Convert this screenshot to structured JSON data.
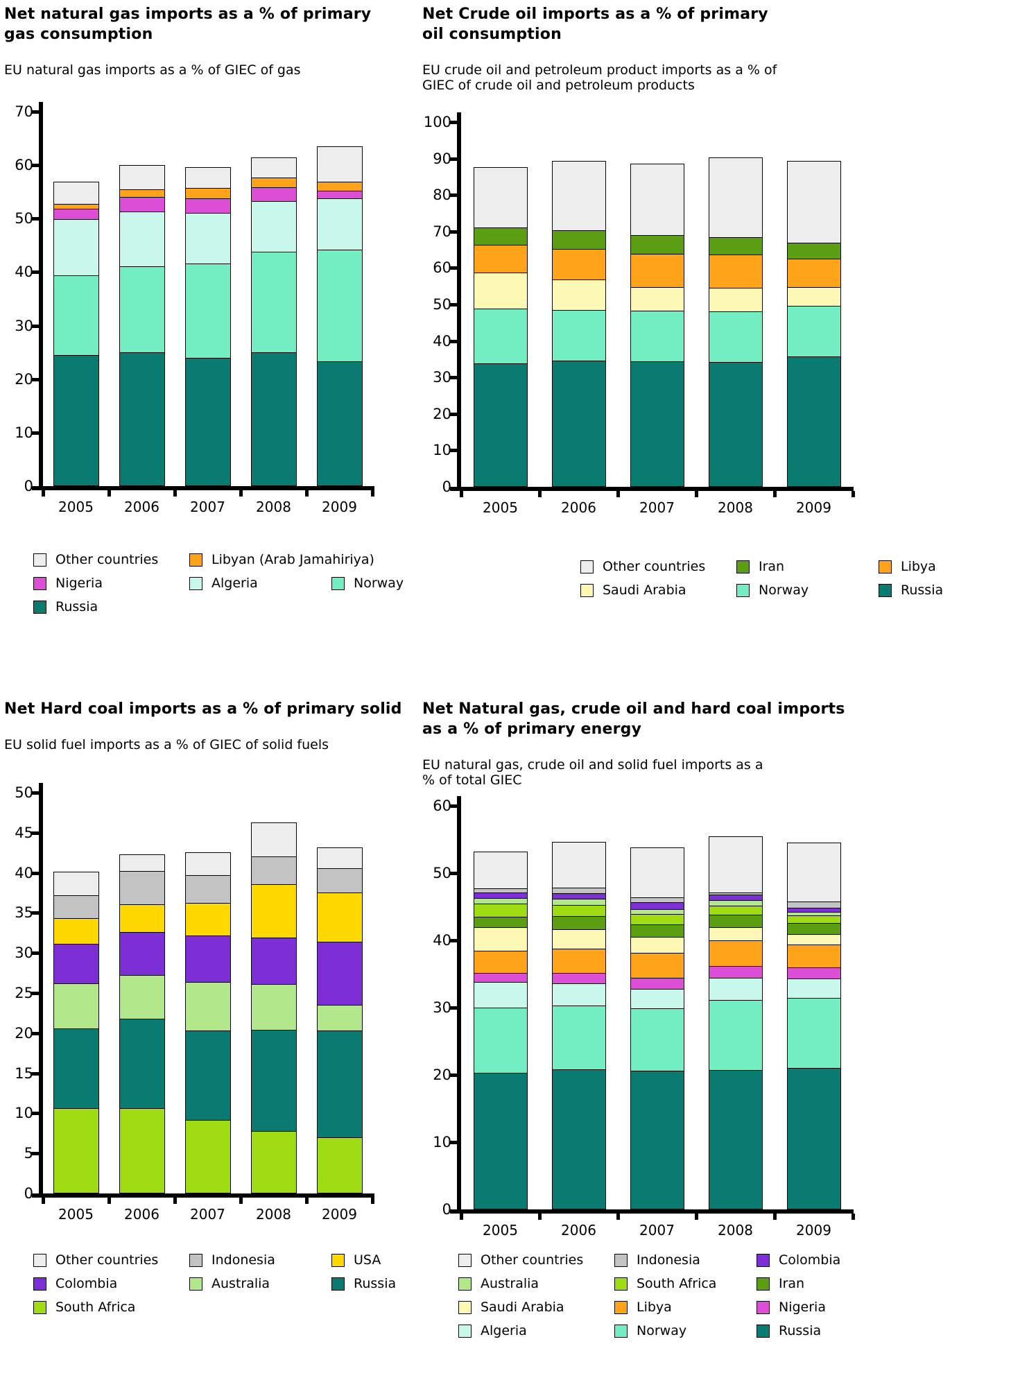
{
  "page": {
    "background": "#FFFFFF"
  },
  "chart_data": [
    {
      "type": "bar",
      "stacked": true,
      "title": "Net natural gas imports as a % of primary\ngas consumption",
      "subtitle": "EU natural gas imports as a % of GIEC of gas",
      "categories": [
        "2005",
        "2006",
        "2007",
        "2008",
        "2009"
      ],
      "xlabel": "",
      "ylabel": "",
      "ylim": [
        0,
        70
      ],
      "ytick_step": 10,
      "grid": false,
      "legend_position": "bottom",
      "series": [
        {
          "name": "Russia",
          "color": "#097B70",
          "values": [
            24.5,
            25.0,
            24.0,
            25.0,
            23.3
          ]
        },
        {
          "name": "Norway",
          "color": "#72EEC2",
          "values": [
            15.0,
            16.2,
            17.8,
            19.0,
            21.0
          ]
        },
        {
          "name": "Algeria",
          "color": "#C8F7EC",
          "values": [
            10.7,
            10.4,
            9.5,
            9.6,
            9.8
          ]
        },
        {
          "name": "Nigeria",
          "color": "#DC4ED6",
          "values": [
            2.1,
            2.9,
            2.9,
            2.7,
            1.5
          ]
        },
        {
          "name": "Libyan (Arab Jamahiriya)",
          "color": "#FFA31B",
          "values": [
            1.0,
            1.5,
            2.0,
            1.9,
            1.8
          ]
        },
        {
          "name": "Other countries",
          "color": "#EDEDED",
          "values": [
            4.3,
            4.7,
            4.1,
            3.9,
            6.8
          ]
        }
      ],
      "legend_rows": [
        [
          "Other countries",
          "Libyan (Arab Jamahiriya)"
        ],
        [
          "Nigeria",
          "Algeria",
          "Norway"
        ],
        [
          "Russia"
        ]
      ]
    },
    {
      "type": "bar",
      "stacked": true,
      "title": "Net Crude oil imports as a % of primary\noil consumption",
      "subtitle": "EU crude oil  and petroleum product imports as a % of\nGIEC of crude oil and petroleum products",
      "categories": [
        "2005",
        "2006",
        "2007",
        "2008",
        "2009"
      ],
      "xlabel": "",
      "ylabel": "",
      "ylim": [
        0,
        100
      ],
      "ytick_step": 10,
      "grid": false,
      "legend_position": "bottom",
      "series": [
        {
          "name": "Russia",
          "color": "#097B70",
          "values": [
            33.9,
            34.6,
            34.5,
            34.3,
            35.7
          ]
        },
        {
          "name": "Norway",
          "color": "#72EEC2",
          "values": [
            15.2,
            14.1,
            14.0,
            14.0,
            14.1
          ]
        },
        {
          "name": "Saudi Arabia",
          "color": "#FDF8B4",
          "values": [
            10.1,
            8.5,
            6.7,
            6.6,
            5.4
          ]
        },
        {
          "name": "Libya",
          "color": "#FFA31B",
          "values": [
            7.8,
            8.6,
            9.3,
            9.4,
            7.9
          ]
        },
        {
          "name": "Iran",
          "color": "#5B9E11",
          "values": [
            4.8,
            5.4,
            5.3,
            5.0,
            4.5
          ]
        },
        {
          "name": "Other countries",
          "color": "#EDEDED",
          "values": [
            16.8,
            19.2,
            19.7,
            22.0,
            22.7
          ]
        }
      ],
      "legend_rows": [
        [
          "Other countries",
          "Iran",
          "Libya"
        ],
        [
          "Saudi Arabia",
          "Norway",
          "Russia"
        ]
      ]
    },
    {
      "type": "bar",
      "stacked": true,
      "title": "Net Hard coal imports as a % of primary solid",
      "subtitle": "EU solid fuel imports as a % of GIEC of solid fuels",
      "categories": [
        "2005",
        "2006",
        "2007",
        "2008",
        "2009"
      ],
      "xlabel": "",
      "ylabel": "",
      "ylim": [
        0,
        50
      ],
      "ytick_step": 5,
      "grid": false,
      "legend_position": "bottom",
      "series": [
        {
          "name": "South Africa",
          "color": "#A0DC14",
          "values": [
            10.6,
            10.6,
            9.2,
            7.8,
            7.0
          ]
        },
        {
          "name": "Russia",
          "color": "#097B70",
          "values": [
            10.1,
            11.3,
            11.2,
            12.7,
            13.4
          ]
        },
        {
          "name": "Australia",
          "color": "#B2E78C",
          "values": [
            5.7,
            5.5,
            6.2,
            5.8,
            3.3
          ]
        },
        {
          "name": "Colombia",
          "color": "#7D2FD5",
          "values": [
            5.0,
            5.5,
            5.8,
            5.9,
            8.0
          ]
        },
        {
          "name": "USA",
          "color": "#FFD800",
          "values": [
            3.3,
            3.5,
            4.2,
            6.7,
            6.2
          ]
        },
        {
          "name": "Indonesia",
          "color": "#C3C3C3",
          "values": [
            2.9,
            4.3,
            3.5,
            3.6,
            3.1
          ]
        },
        {
          "name": "Other countries",
          "color": "#EDEDED",
          "values": [
            3.1,
            2.1,
            3.0,
            4.3,
            2.7
          ]
        }
      ],
      "legend_rows": [
        [
          "Other countries",
          "Indonesia",
          "USA"
        ],
        [
          "Colombia",
          "Australia",
          "Russia"
        ],
        [
          "South Africa"
        ]
      ]
    },
    {
      "type": "bar",
      "stacked": true,
      "title": "Net Natural gas, crude oil and hard coal imports\nas a % of primary energy",
      "subtitle": "EU natural gas, crude oil and  solid fuel imports as a\n% of total GIEC",
      "categories": [
        "2005",
        "2006",
        "2007",
        "2008",
        "2009"
      ],
      "xlabel": "",
      "ylabel": "",
      "ylim": [
        0,
        60
      ],
      "ytick_step": 10,
      "grid": false,
      "legend_position": "bottom",
      "series": [
        {
          "name": "Russia",
          "color": "#097B70",
          "values": [
            20.3,
            20.8,
            20.6,
            20.7,
            21.0
          ]
        },
        {
          "name": "Norway",
          "color": "#72EEC2",
          "values": [
            9.8,
            9.6,
            9.4,
            10.5,
            10.5
          ]
        },
        {
          "name": "Algeria",
          "color": "#C8F7EC",
          "values": [
            3.9,
            3.4,
            3.0,
            3.4,
            3.0
          ]
        },
        {
          "name": "Nigeria",
          "color": "#DC4ED6",
          "values": [
            1.5,
            1.7,
            1.7,
            1.9,
            1.8
          ]
        },
        {
          "name": "Libya",
          "color": "#FFA31B",
          "values": [
            3.4,
            3.7,
            3.9,
            3.9,
            3.5
          ]
        },
        {
          "name": "Saudi Arabia",
          "color": "#FDF8B4",
          "values": [
            3.6,
            3.0,
            2.4,
            2.1,
            1.7
          ]
        },
        {
          "name": "Iran",
          "color": "#5B9E11",
          "values": [
            1.6,
            2.0,
            2.0,
            1.9,
            1.7
          ]
        },
        {
          "name": "South Africa",
          "color": "#A0DC14",
          "values": [
            2.1,
            1.8,
            1.6,
            1.5,
            1.2
          ]
        },
        {
          "name": "Australia",
          "color": "#B2E78C",
          "values": [
            0.9,
            1.0,
            0.9,
            0.9,
            0.7
          ]
        },
        {
          "name": "Colombia",
          "color": "#7D2FD5",
          "values": [
            0.9,
            0.9,
            1.1,
            0.9,
            0.7
          ]
        },
        {
          "name": "Indonesia",
          "color": "#C3C3C3",
          "values": [
            0.8,
            1.0,
            0.8,
            0.5,
            1.0
          ]
        },
        {
          "name": "Other countries",
          "color": "#EDEDED",
          "values": [
            5.5,
            6.9,
            7.6,
            8.4,
            8.9
          ]
        }
      ],
      "legend_rows": [
        [
          "Other countries",
          "Indonesia",
          "Colombia"
        ],
        [
          "Australia",
          "South Africa",
          "Iran"
        ],
        [
          "Saudi Arabia",
          "Libya",
          "Nigeria"
        ],
        [
          "Algeria",
          "Norway",
          "Russia"
        ]
      ]
    }
  ]
}
